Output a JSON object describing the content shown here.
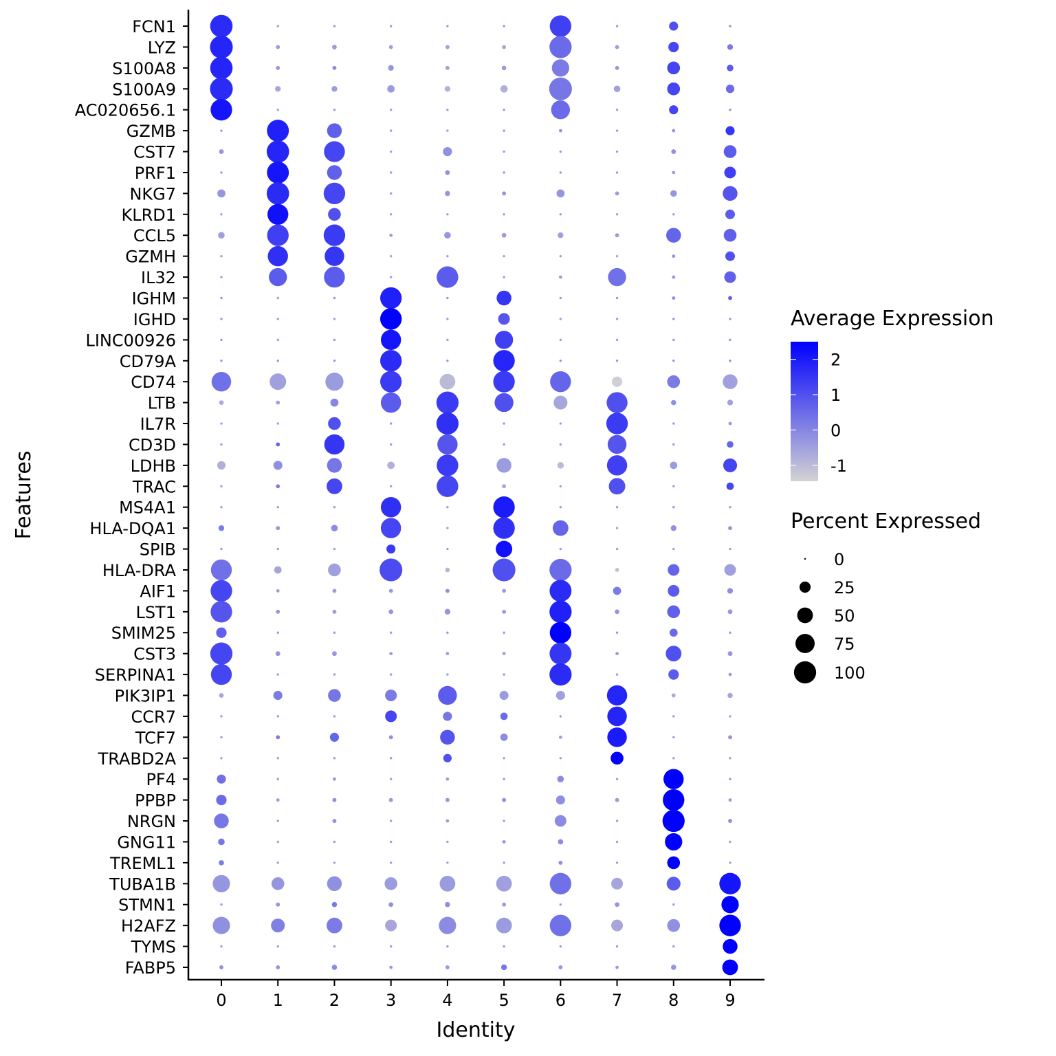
{
  "chart_data": {
    "type": "dotplot",
    "xlabel": "Identity",
    "ylabel": "Features",
    "categories": [
      "0",
      "1",
      "2",
      "3",
      "4",
      "5",
      "6",
      "7",
      "8",
      "9"
    ],
    "features": [
      "FCN1",
      "LYZ",
      "S100A8",
      "S100A9",
      "AC020656.1",
      "GZMB",
      "CST7",
      "PRF1",
      "NKG7",
      "KLRD1",
      "CCL5",
      "GZMH",
      "IL32",
      "IGHM",
      "IGHD",
      "LINC00926",
      "CD79A",
      "CD74",
      "LTB",
      "IL7R",
      "CD3D",
      "LDHB",
      "TRAC",
      "MS4A1",
      "HLA-DQA1",
      "SPIB",
      "HLA-DRA",
      "AIF1",
      "LST1",
      "SMIM25",
      "CST3",
      "SERPINA1",
      "PIK3IP1",
      "CCR7",
      "TCF7",
      "TRABD2A",
      "PF4",
      "PPBP",
      "NRGN",
      "GNG11",
      "TREML1",
      "TUBA1B",
      "STMN1",
      "H2AFZ",
      "TYMS",
      "FABP5"
    ],
    "color_legend": {
      "title": "Average Expression",
      "ticks": [
        "2",
        "1",
        "0",
        "-1"
      ],
      "range": [
        -1.45,
        2.5
      ],
      "low_color": "#D3D3D3",
      "high_color": "#0000FF"
    },
    "size_legend": {
      "title": "Percent Expressed",
      "ticks": [
        "0",
        "25",
        "50",
        "75",
        "100"
      ]
    },
    "pct": [
      [
        92,
        1,
        1,
        1,
        1,
        1,
        85,
        1,
        15,
        1
      ],
      [
        95,
        3,
        4,
        3,
        3,
        3,
        90,
        3,
        20,
        6
      ],
      [
        92,
        3,
        3,
        6,
        3,
        4,
        55,
        3,
        30,
        8
      ],
      [
        95,
        6,
        6,
        10,
        6,
        10,
        95,
        8,
        30,
        13
      ],
      [
        85,
        1,
        1,
        1,
        1,
        1,
        65,
        1,
        15,
        1
      ],
      [
        1,
        88,
        40,
        1,
        1,
        1,
        2,
        1,
        2,
        15
      ],
      [
        4,
        92,
        80,
        1,
        15,
        1,
        1,
        1,
        4,
        30
      ],
      [
        1,
        88,
        40,
        1,
        4,
        1,
        1,
        1,
        2,
        25
      ],
      [
        12,
        92,
        85,
        1,
        5,
        3,
        12,
        3,
        8,
        40
      ],
      [
        1,
        80,
        30,
        1,
        1,
        1,
        1,
        1,
        1,
        17
      ],
      [
        8,
        85,
        85,
        2,
        8,
        4,
        6,
        3,
        40,
        30
      ],
      [
        1,
        75,
        70,
        1,
        1,
        1,
        1,
        1,
        2,
        17
      ],
      [
        1,
        60,
        80,
        1,
        85,
        1,
        2,
        60,
        2,
        25
      ],
      [
        1,
        1,
        1,
        85,
        1,
        40,
        1,
        1,
        2,
        3
      ],
      [
        1,
        1,
        1,
        85,
        1,
        25,
        1,
        1,
        1,
        1
      ],
      [
        1,
        1,
        1,
        75,
        1,
        60,
        1,
        1,
        1,
        1
      ],
      [
        1,
        1,
        1,
        85,
        1,
        85,
        1,
        1,
        1,
        1
      ],
      [
        70,
        50,
        60,
        85,
        45,
        85,
        80,
        20,
        30,
        40
      ],
      [
        4,
        3,
        12,
        75,
        90,
        65,
        35,
        80,
        5,
        6
      ],
      [
        1,
        1,
        30,
        1,
        90,
        1,
        1,
        85,
        1,
        2
      ],
      [
        1,
        3,
        75,
        1,
        75,
        1,
        1,
        65,
        1,
        8
      ],
      [
        13,
        15,
        40,
        10,
        85,
        40,
        8,
        75,
        10,
        35
      ],
      [
        1,
        3,
        45,
        1,
        85,
        3,
        1,
        50,
        1,
        10
      ],
      [
        1,
        1,
        1,
        75,
        1,
        85,
        1,
        1,
        1,
        1
      ],
      [
        6,
        3,
        8,
        75,
        1,
        85,
        45,
        1,
        6,
        3
      ],
      [
        1,
        1,
        1,
        15,
        1,
        50,
        1,
        1,
        1,
        1
      ],
      [
        80,
        10,
        30,
        95,
        4,
        95,
        90,
        3,
        25,
        25
      ],
      [
        85,
        2,
        3,
        3,
        3,
        3,
        88,
        12,
        25,
        6
      ],
      [
        85,
        3,
        3,
        4,
        6,
        3,
        90,
        4,
        30,
        4
      ],
      [
        20,
        1,
        1,
        1,
        1,
        1,
        85,
        1,
        12,
        1
      ],
      [
        90,
        4,
        4,
        2,
        2,
        2,
        88,
        2,
        45,
        4
      ],
      [
        80,
        1,
        1,
        1,
        1,
        1,
        90,
        1,
        20,
        2
      ],
      [
        4,
        15,
        30,
        25,
        65,
        15,
        15,
        75,
        3,
        5
      ],
      [
        1,
        1,
        1,
        25,
        15,
        10,
        1,
        70,
        1,
        1
      ],
      [
        1,
        3,
        15,
        3,
        40,
        10,
        2,
        70,
        1,
        3
      ],
      [
        1,
        1,
        1,
        1,
        13,
        1,
        1,
        30,
        1,
        1
      ],
      [
        15,
        1,
        2,
        1,
        2,
        1,
        8,
        1,
        75,
        1
      ],
      [
        20,
        2,
        3,
        3,
        3,
        3,
        15,
        3,
        85,
        2
      ],
      [
        40,
        1,
        3,
        1,
        2,
        1,
        25,
        1,
        90,
        3
      ],
      [
        8,
        1,
        1,
        1,
        1,
        2,
        5,
        1,
        55,
        1
      ],
      [
        5,
        1,
        1,
        1,
        1,
        1,
        3,
        1,
        30,
        1
      ],
      [
        55,
        30,
        40,
        30,
        45,
        45,
        85,
        25,
        35,
        85
      ],
      [
        1,
        3,
        5,
        4,
        5,
        3,
        1,
        4,
        1,
        55
      ],
      [
        55,
        35,
        45,
        25,
        55,
        45,
        85,
        25,
        30,
        85
      ],
      [
        1,
        1,
        1,
        1,
        1,
        1,
        1,
        1,
        1,
        40
      ],
      [
        3,
        3,
        5,
        2,
        3,
        6,
        3,
        2,
        5,
        45
      ]
    ],
    "avg": [
      [
        1.7,
        -0.4,
        -0.4,
        -0.4,
        -0.4,
        -0.4,
        1.3,
        -0.4,
        1.0,
        -0.2
      ],
      [
        1.8,
        -0.4,
        -0.4,
        -0.5,
        -0.5,
        -0.6,
        0.5,
        -0.5,
        1.2,
        0.2
      ],
      [
        1.8,
        -0.3,
        -0.1,
        -0.3,
        -0.5,
        -0.4,
        0.2,
        -0.3,
        1.2,
        0.8
      ],
      [
        1.7,
        -0.6,
        -0.4,
        -0.4,
        -0.8,
        -0.8,
        0.3,
        -0.5,
        1.2,
        0.5
      ],
      [
        2.1,
        -0.4,
        -0.4,
        -0.4,
        -0.4,
        -0.4,
        0.5,
        -0.4,
        1.2,
        -0.2
      ],
      [
        -0.4,
        1.9,
        0.7,
        -0.4,
        -0.4,
        -0.4,
        -0.2,
        -0.4,
        -0.2,
        1.5
      ],
      [
        -0.3,
        1.8,
        1.2,
        -0.4,
        -0.2,
        -0.4,
        -0.4,
        -0.4,
        -0.2,
        0.8
      ],
      [
        -0.4,
        2.1,
        0.7,
        -0.4,
        -0.2,
        -0.4,
        -0.4,
        -0.4,
        -0.4,
        1.3
      ],
      [
        -0.3,
        1.7,
        1.2,
        -0.4,
        -0.3,
        -0.3,
        -0.3,
        -0.4,
        -0.3,
        0.9
      ],
      [
        -0.4,
        2.2,
        1.0,
        -0.4,
        -0.4,
        -0.4,
        -0.4,
        -0.4,
        -0.4,
        0.8
      ],
      [
        -0.5,
        1.3,
        1.4,
        -0.4,
        -0.3,
        -0.4,
        -0.5,
        -0.4,
        0.6,
        0.7
      ],
      [
        -0.4,
        1.6,
        1.5,
        -0.4,
        -0.4,
        -0.4,
        -0.4,
        -0.4,
        -0.2,
        1.0
      ],
      [
        -0.4,
        0.8,
        0.8,
        -0.4,
        0.8,
        -0.4,
        -0.4,
        0.4,
        -0.3,
        0.7
      ],
      [
        -0.3,
        -0.4,
        -0.3,
        1.9,
        -0.3,
        1.5,
        -0.3,
        -0.3,
        -0.1,
        0.7
      ],
      [
        -0.3,
        -0.4,
        -0.4,
        2.5,
        -0.4,
        0.9,
        -0.4,
        -0.4,
        -0.2,
        -0.3
      ],
      [
        -0.3,
        -0.4,
        -0.4,
        2.1,
        -0.4,
        1.3,
        -0.4,
        -0.4,
        -0.3,
        -0.3
      ],
      [
        -0.3,
        -0.3,
        -0.3,
        1.7,
        -0.3,
        1.8,
        -0.3,
        -0.3,
        -0.2,
        -0.1
      ],
      [
        0.4,
        -0.5,
        -0.4,
        1.4,
        -1.0,
        1.4,
        0.6,
        -1.4,
        0.2,
        -0.5
      ],
      [
        -0.7,
        -0.5,
        0.0,
        0.8,
        1.4,
        1.0,
        -0.6,
        1.0,
        -0.2,
        -0.5
      ],
      [
        -0.4,
        -0.4,
        1.0,
        -0.4,
        1.6,
        -0.4,
        -0.4,
        1.4,
        -0.3,
        -0.3
      ],
      [
        -0.4,
        0.6,
        1.5,
        -0.4,
        0.9,
        -0.4,
        -0.4,
        0.9,
        -0.4,
        0.6
      ],
      [
        -0.8,
        -0.2,
        0.3,
        -0.8,
        1.4,
        -0.4,
        -1.0,
        1.3,
        -0.4,
        1.2
      ],
      [
        -0.4,
        0.1,
        1.2,
        -0.4,
        1.2,
        -0.6,
        -0.4,
        1.0,
        -0.4,
        1.2
      ],
      [
        -0.4,
        -0.4,
        -0.4,
        1.6,
        -0.4,
        2.0,
        -0.4,
        -0.4,
        -0.3,
        -0.4
      ],
      [
        0.2,
        -0.3,
        -0.1,
        1.2,
        -0.5,
        1.6,
        0.6,
        -0.5,
        -0.2,
        -0.3
      ],
      [
        -0.4,
        -0.4,
        -0.4,
        1.4,
        -0.4,
        2.2,
        -0.4,
        -0.4,
        -0.4,
        -0.4
      ],
      [
        0.4,
        -0.6,
        -0.5,
        1.1,
        -0.9,
        1.0,
        0.5,
        -1.1,
        0.6,
        -0.5
      ],
      [
        1.2,
        -0.4,
        -0.4,
        -0.4,
        -0.2,
        -0.4,
        1.7,
        0.2,
        0.8,
        -0.2
      ],
      [
        0.9,
        -0.3,
        -0.4,
        -0.3,
        -0.3,
        -0.4,
        1.9,
        -0.3,
        0.7,
        -0.3
      ],
      [
        0.7,
        -0.4,
        -0.4,
        -0.4,
        -0.4,
        -0.4,
        2.5,
        -0.4,
        0.5,
        -0.4
      ],
      [
        1.2,
        -0.3,
        -0.3,
        -0.4,
        -0.4,
        -0.4,
        1.5,
        -0.4,
        1.0,
        -0.3
      ],
      [
        1.2,
        -0.4,
        -0.4,
        -0.4,
        -0.4,
        -0.4,
        1.7,
        -0.4,
        0.8,
        -0.4
      ],
      [
        -0.6,
        0.2,
        0.3,
        0.2,
        0.8,
        -0.4,
        -0.5,
        1.8,
        -0.7,
        -0.6
      ],
      [
        -0.4,
        -0.4,
        -0.4,
        1.2,
        0.3,
        0.5,
        -0.4,
        1.8,
        -0.4,
        -0.4
      ],
      [
        -0.4,
        0.1,
        0.6,
        -0.2,
        0.9,
        -0.1,
        -0.4,
        2.0,
        -0.4,
        -0.3
      ],
      [
        -0.4,
        -0.4,
        -0.4,
        -0.2,
        1.0,
        -0.4,
        -0.4,
        2.5,
        -0.4,
        -0.4
      ],
      [
        0.4,
        -0.3,
        -0.3,
        -0.4,
        -0.4,
        -0.4,
        -0.1,
        -0.4,
        2.5,
        -0.3
      ],
      [
        0.5,
        -0.4,
        -0.2,
        -0.4,
        -0.3,
        -0.2,
        -0.2,
        -0.4,
        2.5,
        -0.4
      ],
      [
        0.3,
        -0.4,
        -0.2,
        -0.4,
        -0.4,
        -0.4,
        -0.1,
        -0.4,
        2.5,
        -0.2
      ],
      [
        0.3,
        -0.4,
        -0.4,
        -0.4,
        -0.4,
        -0.2,
        -0.1,
        -0.4,
        2.5,
        -0.4
      ],
      [
        0.2,
        -0.4,
        -0.4,
        -0.4,
        -0.4,
        -0.4,
        -0.2,
        -0.4,
        2.5,
        -0.4
      ],
      [
        -0.3,
        -0.3,
        -0.2,
        -0.4,
        -0.4,
        -0.5,
        0.4,
        -0.6,
        0.8,
        2.1
      ],
      [
        -0.4,
        -0.3,
        0.2,
        -0.2,
        -0.2,
        -0.4,
        -0.4,
        -0.3,
        -0.4,
        2.5
      ],
      [
        -0.2,
        0.1,
        0.2,
        -0.6,
        -0.1,
        -0.4,
        0.4,
        -0.6,
        -0.2,
        2.5
      ],
      [
        -0.4,
        -0.4,
        -0.4,
        -0.4,
        -0.4,
        -0.4,
        -0.4,
        -0.4,
        -0.4,
        2.5
      ],
      [
        -0.2,
        -0.3,
        -0.1,
        -0.4,
        -0.4,
        0.3,
        -0.3,
        -0.4,
        -0.3,
        2.5
      ]
    ]
  }
}
